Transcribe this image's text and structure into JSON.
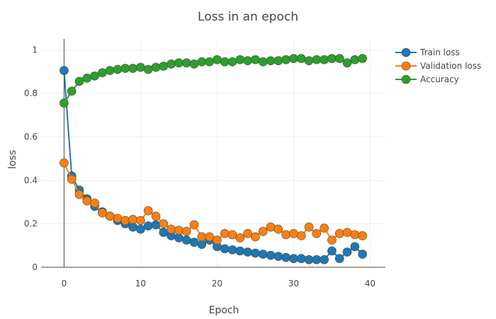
{
  "chart_data": {
    "type": "line",
    "title": "Loss in an epoch",
    "xlabel": "Epoch",
    "ylabel": "loss",
    "xlim": [
      -3,
      42
    ],
    "ylim": [
      0,
      1.05
    ],
    "xticks": [
      0,
      10,
      20,
      30,
      40
    ],
    "yticks": [
      0,
      0.2,
      0.4,
      0.6,
      0.8,
      1
    ],
    "ytick_labels": [
      "0",
      "0.2",
      "0.4",
      "0.6",
      "0.8",
      "1"
    ],
    "grid": true,
    "legend_position": "top-right",
    "x": [
      0,
      1,
      2,
      3,
      4,
      5,
      6,
      7,
      8,
      9,
      10,
      11,
      12,
      13,
      14,
      15,
      16,
      17,
      18,
      19,
      20,
      21,
      22,
      23,
      24,
      25,
      26,
      27,
      28,
      29,
      30,
      31,
      32,
      33,
      34,
      35,
      36,
      37,
      38,
      39
    ],
    "series": [
      {
        "name": "Train loss",
        "color": "#1f77b4",
        "values": [
          0.905,
          0.42,
          0.355,
          0.315,
          0.28,
          0.255,
          0.235,
          0.215,
          0.2,
          0.185,
          0.175,
          0.19,
          0.195,
          0.16,
          0.145,
          0.135,
          0.125,
          0.115,
          0.105,
          0.125,
          0.095,
          0.085,
          0.08,
          0.075,
          0.07,
          0.065,
          0.06,
          0.055,
          0.05,
          0.045,
          0.04,
          0.04,
          0.035,
          0.035,
          0.035,
          0.075,
          0.04,
          0.07,
          0.095,
          0.06
        ]
      },
      {
        "name": "Validation loss",
        "color": "#ff7f0e",
        "values": [
          0.48,
          0.405,
          0.335,
          0.305,
          0.295,
          0.25,
          0.235,
          0.225,
          0.215,
          0.22,
          0.215,
          0.26,
          0.235,
          0.2,
          0.175,
          0.17,
          0.165,
          0.195,
          0.14,
          0.14,
          0.125,
          0.155,
          0.15,
          0.135,
          0.155,
          0.14,
          0.165,
          0.185,
          0.175,
          0.15,
          0.155,
          0.145,
          0.185,
          0.155,
          0.18,
          0.125,
          0.155,
          0.16,
          0.15,
          0.145
        ]
      },
      {
        "name": "Accuracy",
        "color": "#2ca02c",
        "values": [
          0.755,
          0.81,
          0.855,
          0.87,
          0.88,
          0.895,
          0.905,
          0.91,
          0.915,
          0.915,
          0.92,
          0.91,
          0.92,
          0.925,
          0.935,
          0.94,
          0.94,
          0.935,
          0.945,
          0.945,
          0.955,
          0.945,
          0.945,
          0.955,
          0.95,
          0.955,
          0.945,
          0.95,
          0.95,
          0.955,
          0.96,
          0.96,
          0.95,
          0.955,
          0.955,
          0.96,
          0.96,
          0.94,
          0.955,
          0.96
        ]
      }
    ]
  }
}
